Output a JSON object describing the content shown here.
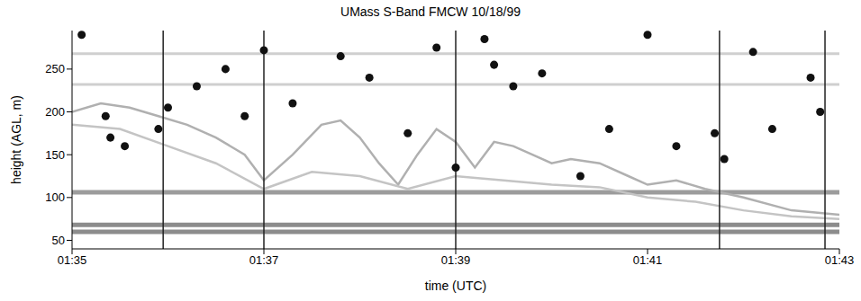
{
  "chart_data": {
    "type": "scatter",
    "title": "UMass S-Band FMCW 10/18/99",
    "x_label": "time (UTC)",
    "y_label": "height (AGL, m)",
    "xlim": [
      95,
      103
    ],
    "xticks": [
      {
        "value": 95,
        "label": "01:35"
      },
      {
        "value": 97,
        "label": "01:37"
      },
      {
        "value": 99,
        "label": "01:39"
      },
      {
        "value": 101,
        "label": "01:41"
      },
      {
        "value": 103,
        "label": "01:43"
      }
    ],
    "ylim": [
      40,
      295
    ],
    "yticks": [
      50,
      100,
      150,
      200,
      250
    ],
    "grid": false,
    "series": [
      {
        "type": "line",
        "color": "#8c8c8c",
        "line_style": "solid",
        "x": [
          95,
          103
        ],
        "values": [
          60,
          60
        ]
      },
      {
        "type": "line",
        "color": "#8c8c8c",
        "line_style": "solid",
        "x": [
          95,
          103
        ],
        "values": [
          68,
          68
        ]
      },
      {
        "type": "line",
        "color": "#9c9c9c",
        "line_style": "solid",
        "x": [
          95,
          103
        ],
        "values": [
          106,
          106
        ]
      },
      {
        "type": "line",
        "color": "#cfcfcf",
        "line_style": "solid",
        "x": [
          95,
          103
        ],
        "values": [
          232,
          232
        ]
      },
      {
        "type": "line",
        "color": "#cfcfcf",
        "line_style": "solid",
        "x": [
          95,
          103
        ],
        "values": [
          268,
          268
        ]
      },
      {
        "type": "line",
        "color": "#b0b0b0",
        "line_style": "solid",
        "x": [
          95.0,
          95.3,
          95.6,
          95.9,
          96.2,
          96.5,
          96.8,
          97.0,
          97.3,
          97.6,
          97.8,
          98.0,
          98.2,
          98.4,
          98.6,
          98.8,
          99.0,
          99.2,
          99.4,
          99.6,
          99.8,
          100.0,
          100.2,
          100.5,
          100.8,
          101.0,
          101.3,
          101.6,
          102.0,
          102.5,
          103.0
        ],
        "values": [
          200,
          210,
          205,
          195,
          185,
          170,
          150,
          120,
          150,
          185,
          190,
          170,
          140,
          115,
          150,
          180,
          165,
          135,
          165,
          160,
          150,
          140,
          145,
          140,
          125,
          115,
          120,
          110,
          100,
          85,
          80
        ]
      },
      {
        "type": "line",
        "color": "#c4c4c4",
        "line_style": "solid",
        "x": [
          95.0,
          95.5,
          96.0,
          96.5,
          97.0,
          97.5,
          98.0,
          98.5,
          99.0,
          99.5,
          100.0,
          100.5,
          101.0,
          101.5,
          102.0,
          102.5,
          103.0
        ],
        "values": [
          185,
          180,
          160,
          140,
          110,
          130,
          125,
          110,
          125,
          120,
          115,
          112,
          100,
          95,
          85,
          78,
          75
        ]
      },
      {
        "type": "line",
        "color": "#222222",
        "line_style": "solid",
        "x": [
          95.95,
          95.95
        ],
        "values": [
          40,
          295
        ]
      },
      {
        "type": "line",
        "color": "#222222",
        "line_style": "solid",
        "x": [
          97.0,
          97.0
        ],
        "values": [
          40,
          295
        ]
      },
      {
        "type": "line",
        "color": "#222222",
        "line_style": "solid",
        "x": [
          99.0,
          99.0
        ],
        "values": [
          40,
          295
        ]
      },
      {
        "type": "line",
        "color": "#222222",
        "line_style": "solid",
        "x": [
          101.75,
          101.75
        ],
        "values": [
          40,
          295
        ]
      },
      {
        "type": "line",
        "color": "#222222",
        "line_style": "solid",
        "x": [
          102.85,
          102.85
        ],
        "values": [
          40,
          295
        ]
      },
      {
        "type": "scatter",
        "color": "#111111",
        "marker": "circle",
        "x": [
          95.1,
          95.35,
          95.4,
          95.55,
          95.9,
          96.0,
          96.3,
          96.6,
          96.8,
          97.0,
          97.3,
          97.8,
          98.1,
          98.5,
          98.8,
          99.0,
          99.3,
          99.4,
          99.6,
          99.9,
          100.3,
          100.6,
          101.0,
          101.3,
          101.7,
          101.8,
          102.1,
          102.3,
          102.7,
          102.8
        ],
        "values": [
          290,
          195,
          170,
          160,
          180,
          205,
          230,
          250,
          195,
          272,
          210,
          265,
          240,
          175,
          275,
          135,
          285,
          255,
          230,
          245,
          125,
          180,
          290,
          160,
          175,
          145,
          270,
          180,
          240,
          200
        ]
      }
    ]
  }
}
